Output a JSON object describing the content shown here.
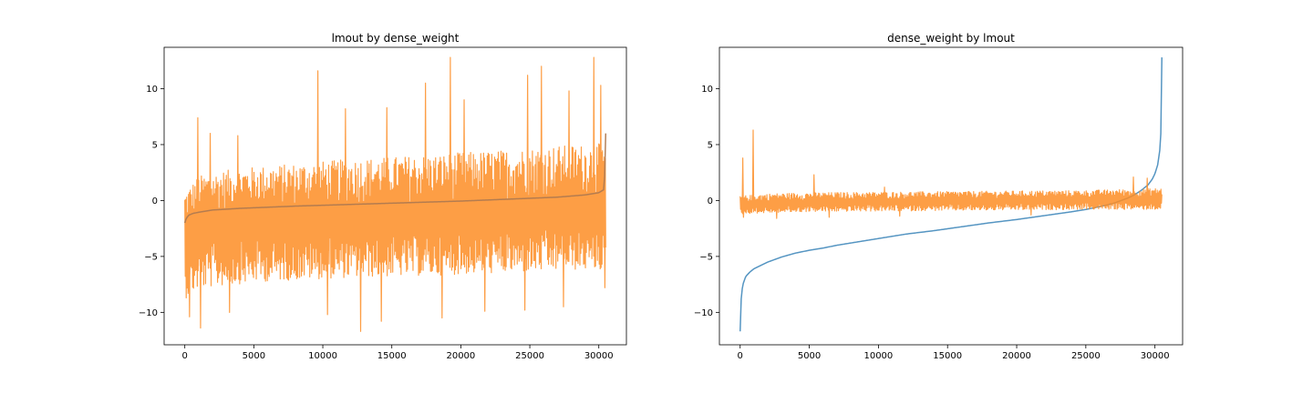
{
  "chart_data": [
    {
      "type": "line",
      "title": "lmout by dense_weight",
      "xlabel": "",
      "ylabel": "",
      "xlim": [
        -1500,
        32000
      ],
      "ylim": [
        -12.9,
        13.7
      ],
      "xticks": [
        0,
        5000,
        10000,
        15000,
        20000,
        25000,
        30000
      ],
      "yticks": [
        -10,
        -5,
        0,
        5,
        10
      ],
      "n_points": 30500,
      "series": [
        {
          "color": "#fd8d24",
          "kind": "noisy-band",
          "x": [
            0,
            1000,
            3000,
            5000,
            8000,
            10000,
            12000,
            15000,
            18000,
            20000,
            23000,
            25000,
            27000,
            29000,
            30500
          ],
          "center": [
            -3.6,
            -2.4,
            -2.2,
            -2.1,
            -2.0,
            -1.95,
            -1.9,
            -1.8,
            -1.7,
            -1.6,
            -1.5,
            -1.4,
            -1.3,
            -1.3,
            -1.2
          ],
          "typical_low": [
            -8.8,
            -7.9,
            -7.6,
            -7.3,
            -7.1,
            -7.0,
            -6.9,
            -6.8,
            -6.7,
            -6.6,
            -6.5,
            -6.4,
            -6.3,
            -6.2,
            -6.2
          ],
          "typical_high": [
            0.8,
            2.2,
            2.7,
            3.0,
            3.3,
            3.5,
            3.7,
            3.9,
            4.1,
            4.3,
            4.5,
            4.7,
            4.9,
            5.0,
            5.1
          ],
          "spikes_high": [
            [
              900,
              7.4
            ],
            [
              1800,
              6.0
            ],
            [
              3800,
              5.8
            ],
            [
              9600,
              11.6
            ],
            [
              11600,
              8.2
            ],
            [
              14600,
              8.3
            ],
            [
              17400,
              10.5
            ],
            [
              19200,
              12.8
            ],
            [
              20200,
              9.0
            ],
            [
              24800,
              11.2
            ],
            [
              25800,
              12.0
            ],
            [
              27800,
              9.8
            ],
            [
              29600,
              12.8
            ],
            [
              30100,
              10.3
            ]
          ],
          "spikes_low": [
            [
              300,
              -10.4
            ],
            [
              1100,
              -11.4
            ],
            [
              3200,
              -10.0
            ],
            [
              10300,
              -10.2
            ],
            [
              12700,
              -11.7
            ],
            [
              14200,
              -10.8
            ],
            [
              18600,
              -10.5
            ],
            [
              21700,
              -9.9
            ],
            [
              24600,
              -9.8
            ],
            [
              27400,
              -9.5
            ],
            [
              30400,
              -7.8
            ]
          ]
        },
        {
          "color": "#b07a50",
          "kind": "sorted-curve",
          "x": [
            0,
            100,
            300,
            600,
            1000,
            2000,
            4000,
            8000,
            12000,
            16000,
            20000,
            24000,
            27000,
            29000,
            30000,
            30400,
            30500
          ],
          "y": [
            -2.0,
            -1.6,
            -1.3,
            -1.15,
            -1.05,
            -0.85,
            -0.7,
            -0.5,
            -0.35,
            -0.2,
            -0.05,
            0.15,
            0.3,
            0.5,
            0.7,
            1.0,
            6.0
          ]
        }
      ]
    },
    {
      "type": "line",
      "title": "dense_weight by lmout",
      "xlabel": "",
      "ylabel": "",
      "xlim": [
        -1500,
        32000
      ],
      "ylim": [
        -12.9,
        13.7
      ],
      "xticks": [
        0,
        5000,
        10000,
        15000,
        20000,
        25000,
        30000
      ],
      "yticks": [
        -10,
        -5,
        0,
        5,
        10
      ],
      "n_points": 30500,
      "series": [
        {
          "color": "#4c8fbf",
          "kind": "sorted-curve",
          "x": [
            0,
            30,
            100,
            200,
            400,
            700,
            1000,
            1500,
            2000,
            3000,
            4000,
            5000,
            6000,
            7000,
            8000,
            10000,
            12000,
            14000,
            16000,
            18000,
            20000,
            22000,
            24000,
            25000,
            26000,
            27000,
            28000,
            28500,
            29000,
            29500,
            29800,
            30000,
            30200,
            30350,
            30450,
            30500
          ],
          "y": [
            -11.7,
            -9.8,
            -8.3,
            -7.5,
            -6.8,
            -6.4,
            -6.1,
            -5.8,
            -5.5,
            -5.05,
            -4.7,
            -4.45,
            -4.25,
            -4.0,
            -3.8,
            -3.4,
            -3.0,
            -2.7,
            -2.35,
            -2.0,
            -1.7,
            -1.35,
            -1.0,
            -0.8,
            -0.55,
            -0.25,
            0.2,
            0.5,
            0.9,
            1.4,
            1.9,
            2.4,
            3.2,
            4.5,
            6.5,
            12.8
          ]
        },
        {
          "color": "#fd8d24",
          "kind": "noisy-band",
          "x": [
            0,
            2000,
            5000,
            10000,
            15000,
            20000,
            25000,
            28000,
            30500
          ],
          "center": [
            -0.4,
            -0.3,
            -0.2,
            -0.15,
            -0.1,
            -0.05,
            0.0,
            0.05,
            0.1
          ],
          "typical_low": [
            -1.2,
            -1.1,
            -1.0,
            -0.95,
            -0.9,
            -0.85,
            -0.8,
            -0.8,
            -0.8
          ],
          "typical_high": [
            0.4,
            0.6,
            0.7,
            0.75,
            0.8,
            0.85,
            0.9,
            1.0,
            1.1
          ],
          "spikes_high": [
            [
              150,
              3.8
            ],
            [
              900,
              6.3
            ],
            [
              5300,
              2.3
            ],
            [
              10400,
              1.2
            ],
            [
              28400,
              2.1
            ],
            [
              29400,
              2.0
            ]
          ],
          "spikes_low": [
            [
              200,
              -1.5
            ],
            [
              2600,
              -1.6
            ],
            [
              6400,
              -1.5
            ],
            [
              11500,
              -1.4
            ],
            [
              21000,
              -1.3
            ]
          ]
        }
      ]
    }
  ]
}
